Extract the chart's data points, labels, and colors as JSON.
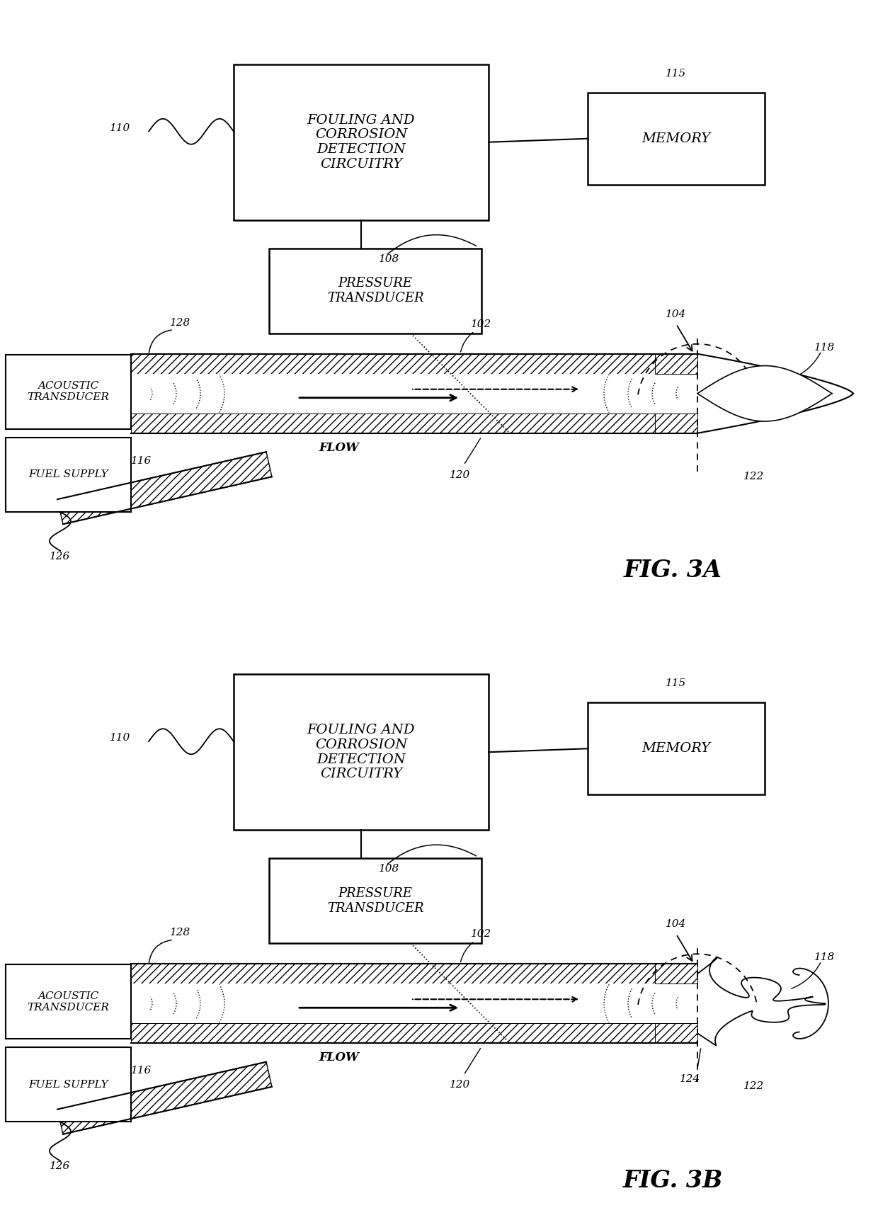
{
  "bg_color": "#ffffff",
  "panels": [
    "A",
    "B"
  ],
  "fig_labels": [
    "FIG. 3A",
    "FIG. 3B"
  ],
  "fouling_box_text": [
    "FOULING AND",
    "CORROSION",
    "DETECTION",
    "CIRCUITRY"
  ],
  "memory_text": [
    "MEMORY"
  ],
  "pressure_text": [
    "PRESSURE",
    "TRANSDUCER"
  ],
  "acoustic_text": [
    "ACOUSTIC",
    "TRANSDUCER"
  ],
  "fuel_text": [
    "FUEL SUPPLY"
  ],
  "flow_text": "FLOW",
  "refs": {
    "110": "110",
    "115": "115",
    "108": "108",
    "102": "102",
    "104": "104",
    "118": "118",
    "122": "122",
    "120": "120",
    "116": "116",
    "128": "128",
    "126": "126",
    "124": "124"
  }
}
